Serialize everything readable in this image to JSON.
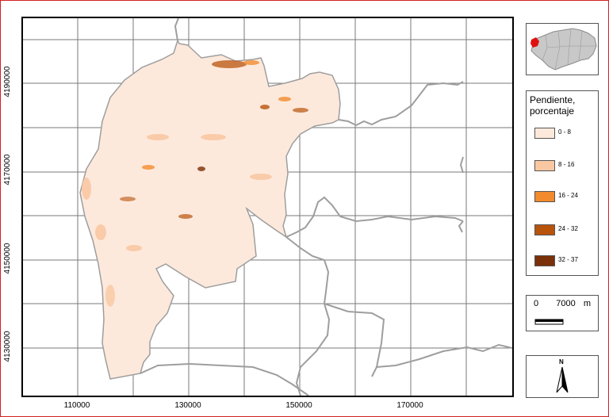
{
  "map": {
    "x_ticks": [
      "110000",
      "130000",
      "150000",
      "170000"
    ],
    "y_ticks": [
      "4190000",
      "4170000",
      "4150000",
      "4130000"
    ]
  },
  "legend": {
    "title_line1": "Pendiente,",
    "title_line2": "porcentaje",
    "classes": [
      {
        "label": "0 - 8",
        "color": "#fde9dc"
      },
      {
        "label": "8 - 16",
        "color": "#f9c8a3"
      },
      {
        "label": "16 - 24",
        "color": "#f28a2e"
      },
      {
        "label": "24 - 32",
        "color": "#b8530c"
      },
      {
        "label": "32 - 37",
        "color": "#7a3008"
      }
    ]
  },
  "scale_bar": {
    "start": "0",
    "end": "7000",
    "unit": "m"
  },
  "north_arrow": {
    "label": "N"
  },
  "colors": {
    "frame_border": "#d32020",
    "boundary_lines": "#9e9e9e",
    "region_fill": "#fde9dc",
    "locator_highlight": "#e01010"
  }
}
